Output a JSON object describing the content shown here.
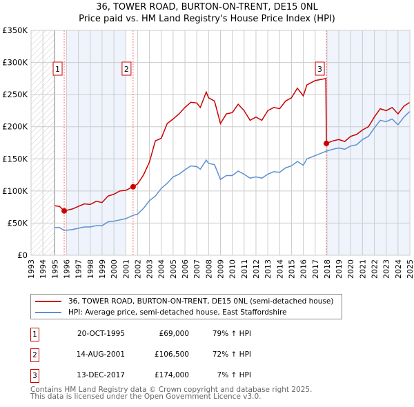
{
  "header": {
    "title": "36, TOWER ROAD, BURTON-ON-TRENT, DE15 0NL",
    "subtitle": "Price paid vs. HM Land Registry's House Price Index (HPI)"
  },
  "chart_data": {
    "type": "line",
    "title": "36, TOWER ROAD, BURTON-ON-TRENT, DE15 0NL",
    "subtitle": "Price paid vs. HM Land Registry's House Price Index (HPI)",
    "xlim": [
      1993,
      2025
    ],
    "ylim": [
      0,
      350000
    ],
    "y_ticks": [
      {
        "v": 0,
        "label": "£0"
      },
      {
        "v": 50000,
        "label": "£50K"
      },
      {
        "v": 100000,
        "label": "£100K"
      },
      {
        "v": 150000,
        "label": "£150K"
      },
      {
        "v": 200000,
        "label": "£200K"
      },
      {
        "v": 250000,
        "label": "£250K"
      },
      {
        "v": 300000,
        "label": "£300K"
      },
      {
        "v": 350000,
        "label": "£350K"
      }
    ],
    "x_ticks": [
      "1993",
      "1994",
      "1995",
      "1996",
      "1997",
      "1998",
      "1999",
      "2000",
      "2001",
      "2002",
      "2003",
      "2004",
      "2005",
      "2006",
      "2007",
      "2008",
      "2009",
      "2010",
      "2011",
      "2012",
      "2013",
      "2014",
      "2015",
      "2016",
      "2017",
      "2018",
      "2019",
      "2020",
      "2021",
      "2022",
      "2023",
      "2024",
      "2025"
    ],
    "grid": true,
    "colors": {
      "property": "#cc0000",
      "hpi": "#5b8fd0",
      "shade": "#eef3fc"
    },
    "shaded_ranges": [
      [
        1996,
        2001
      ],
      [
        2018,
        2025
      ]
    ],
    "hatched_range": [
      1993,
      1995
    ],
    "series": [
      {
        "name": "36, TOWER ROAD, BURTON-ON-TRENT, DE15 0NL (semi-detached house)",
        "color": "#cc0000",
        "x": [
          1995,
          1995.4,
          1995.8,
          1996.5,
          1997,
          1997.5,
          1998,
          1998.5,
          1999,
          1999.5,
          2000,
          2000.5,
          2001,
          2001.6,
          2002,
          2002.5,
          2003,
          2003.5,
          2004,
          2004.5,
          2005,
          2005.5,
          2006,
          2006.5,
          2007,
          2007.3,
          2007.8,
          2008,
          2008.5,
          2009,
          2009.5,
          2010,
          2010.5,
          2011,
          2011.5,
          2012,
          2012.5,
          2013,
          2013.5,
          2014,
          2014.5,
          2015,
          2015.5,
          2016,
          2016.3,
          2017,
          2017.9,
          2017.95,
          2018.5,
          2019,
          2019.5,
          2020,
          2020.5,
          2021,
          2021.5,
          2022,
          2022.5,
          2023,
          2023.5,
          2024,
          2024.5,
          2025
        ],
        "values": [
          77000,
          76000,
          69000,
          72000,
          76000,
          80000,
          79000,
          84000,
          82000,
          92000,
          95000,
          100000,
          101000,
          106500,
          111000,
          125000,
          145000,
          178000,
          182000,
          205000,
          212000,
          220000,
          230000,
          238000,
          237000,
          230000,
          254000,
          245000,
          240000,
          205000,
          220000,
          222000,
          235000,
          225000,
          210000,
          215000,
          210000,
          225000,
          230000,
          228000,
          240000,
          245000,
          260000,
          248000,
          265000,
          272000,
          275000,
          174000,
          178000,
          180000,
          177000,
          185000,
          188000,
          195000,
          200000,
          215000,
          228000,
          225000,
          230000,
          220000,
          232000,
          238000
        ]
      },
      {
        "name": "HPI: Average price, semi-detached house, East Staffordshire",
        "color": "#5b8fd0",
        "x": [
          1995,
          1995.4,
          1995.8,
          1996.5,
          1997,
          1997.5,
          1998,
          1998.5,
          1999,
          1999.5,
          2000,
          2000.5,
          2001,
          2001.6,
          2002,
          2002.5,
          2003,
          2003.5,
          2004,
          2004.5,
          2005,
          2005.5,
          2006,
          2006.5,
          2007,
          2007.3,
          2007.8,
          2008,
          2008.5,
          2009,
          2009.5,
          2010,
          2010.5,
          2011,
          2011.5,
          2012,
          2012.5,
          2013,
          2013.5,
          2014,
          2014.5,
          2015,
          2015.5,
          2016,
          2016.3,
          2017,
          2017.95,
          2018.5,
          2019,
          2019.5,
          2020,
          2020.5,
          2021,
          2021.5,
          2022,
          2022.5,
          2023,
          2023.5,
          2024,
          2024.5,
          2025
        ],
        "values": [
          43000,
          43000,
          38500,
          40000,
          42000,
          44000,
          44000,
          46000,
          46000,
          52000,
          53000,
          55000,
          57000,
          62000,
          64000,
          73000,
          85000,
          92000,
          104000,
          112000,
          122000,
          126000,
          133000,
          139000,
          138000,
          134000,
          148000,
          143000,
          141000,
          118000,
          124000,
          124000,
          131000,
          126000,
          120000,
          122000,
          120000,
          126000,
          130000,
          129000,
          136000,
          139000,
          146000,
          140000,
          150000,
          155000,
          162000,
          165000,
          167000,
          165000,
          170000,
          172000,
          180000,
          185000,
          198000,
          210000,
          208000,
          212000,
          203000,
          215000,
          224000
        ]
      }
    ],
    "sales": [
      {
        "n": "1",
        "x": 1995.8,
        "value": 69000
      },
      {
        "n": "2",
        "x": 2001.62,
        "value": 106500
      },
      {
        "n": "3",
        "x": 2017.95,
        "value": 174000
      }
    ]
  },
  "legend": {
    "property": "36, TOWER ROAD, BURTON-ON-TRENT, DE15 0NL (semi-detached house)",
    "hpi": "HPI: Average price, semi-detached house, East Staffordshire"
  },
  "transactions": [
    {
      "n": "1",
      "date": "20-OCT-1995",
      "price": "£69,000",
      "hpi": "79% ↑ HPI"
    },
    {
      "n": "2",
      "date": "14-AUG-2001",
      "price": "£106,500",
      "hpi": "72% ↑ HPI"
    },
    {
      "n": "3",
      "date": "13-DEC-2017",
      "price": "£174,000",
      "hpi": "7% ↑ HPI"
    }
  ],
  "footer": {
    "line1": "Contains HM Land Registry data © Crown copyright and database right 2025.",
    "line2": "This data is licensed under the Open Government Licence v3.0."
  }
}
